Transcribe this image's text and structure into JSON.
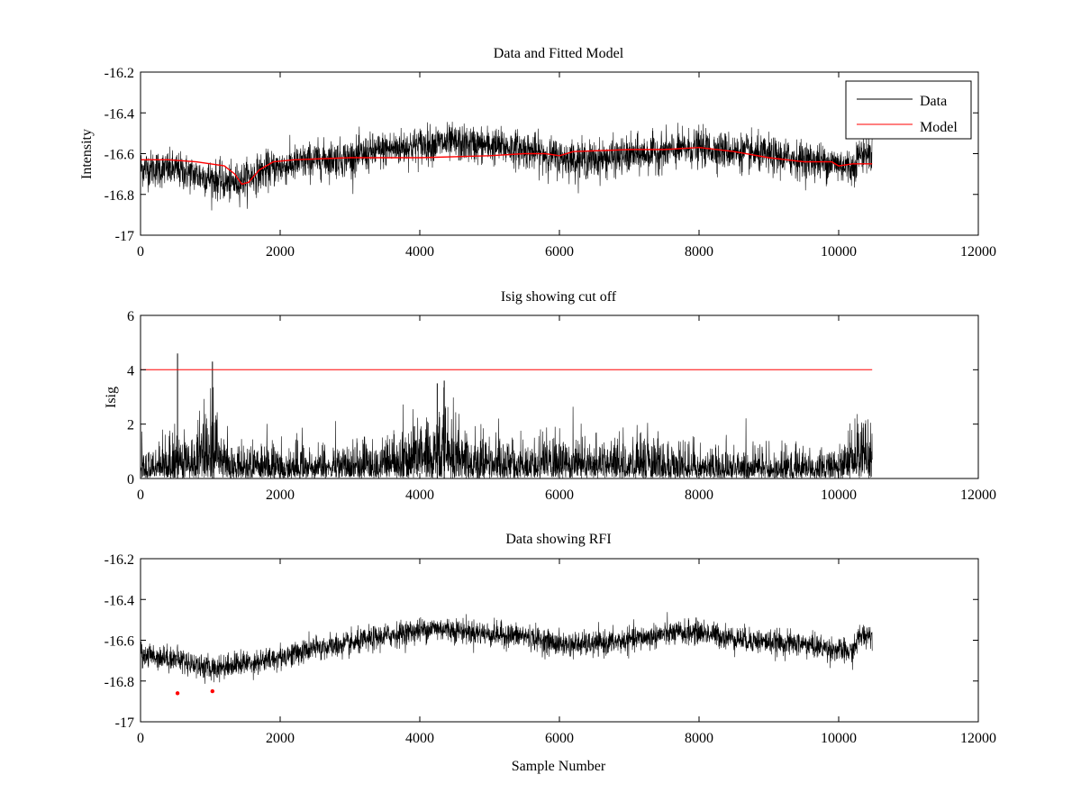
{
  "colors": {
    "data": "#000000",
    "model": "#ff0000",
    "rfi": "#ff0000",
    "background": "#ffffff",
    "axes": "#000000"
  },
  "chart_data": [
    {
      "type": "line",
      "title": "Data and Fitted Model",
      "xlabel": "",
      "ylabel": "Intensity",
      "xlim": [
        0,
        12000
      ],
      "ylim": [
        -17,
        -16.2
      ],
      "xticks": [
        "0",
        "2000",
        "4000",
        "6000",
        "8000",
        "10000",
        "12000"
      ],
      "yticks": [
        "-16.2",
        "-16.4",
        "-16.6",
        "-16.8",
        "-17"
      ],
      "legend": {
        "position": "top-right",
        "entries": [
          "Data",
          "Model"
        ]
      },
      "series": [
        {
          "name": "Data",
          "kind": "noisy",
          "x_range": [
            0,
            10480
          ],
          "noise_sd": 0.045,
          "baseline": [
            [
              0,
              -16.67
            ],
            [
              500,
              -16.68
            ],
            [
              1000,
              -16.72
            ],
            [
              1300,
              -16.75
            ],
            [
              1800,
              -16.68
            ],
            [
              2500,
              -16.63
            ],
            [
              3000,
              -16.62
            ],
            [
              3500,
              -16.58
            ],
            [
              4200,
              -16.55
            ],
            [
              4500,
              -16.55
            ],
            [
              5000,
              -16.56
            ],
            [
              5500,
              -16.58
            ],
            [
              6000,
              -16.62
            ],
            [
              6500,
              -16.63
            ],
            [
              7000,
              -16.61
            ],
            [
              7500,
              -16.59
            ],
            [
              8000,
              -16.57
            ],
            [
              8500,
              -16.59
            ],
            [
              9000,
              -16.61
            ],
            [
              9500,
              -16.63
            ],
            [
              10000,
              -16.65
            ],
            [
              10200,
              -16.67
            ],
            [
              10300,
              -16.6
            ],
            [
              10480,
              -16.6
            ]
          ]
        },
        {
          "name": "Model",
          "kind": "line",
          "points": [
            [
              0,
              -16.63
            ],
            [
              400,
              -16.63
            ],
            [
              800,
              -16.64
            ],
            [
              1000,
              -16.65
            ],
            [
              1200,
              -16.66
            ],
            [
              1350,
              -16.7
            ],
            [
              1450,
              -16.75
            ],
            [
              1550,
              -16.74
            ],
            [
              1700,
              -16.68
            ],
            [
              1900,
              -16.64
            ],
            [
              2200,
              -16.63
            ],
            [
              3000,
              -16.62
            ],
            [
              4000,
              -16.62
            ],
            [
              5000,
              -16.61
            ],
            [
              5500,
              -16.6
            ],
            [
              5800,
              -16.6
            ],
            [
              6000,
              -16.61
            ],
            [
              6200,
              -16.59
            ],
            [
              7000,
              -16.58
            ],
            [
              7500,
              -16.58
            ],
            [
              8000,
              -16.57
            ],
            [
              8500,
              -16.59
            ],
            [
              9000,
              -16.62
            ],
            [
              9500,
              -16.64
            ],
            [
              9900,
              -16.64
            ],
            [
              10000,
              -16.66
            ],
            [
              10200,
              -16.65
            ],
            [
              10480,
              -16.65
            ]
          ]
        }
      ]
    },
    {
      "type": "line",
      "title": "Isig showing cut off",
      "xlabel": "",
      "ylabel": "Isig",
      "xlim": [
        0,
        12000
      ],
      "ylim": [
        0,
        6
      ],
      "xticks": [
        "0",
        "2000",
        "4000",
        "6000",
        "8000",
        "10000",
        "12000"
      ],
      "yticks": [
        "0",
        "2",
        "4",
        "6"
      ],
      "series": [
        {
          "name": "Isig",
          "kind": "abs-noise",
          "x_range": [
            0,
            10480
          ],
          "envelope": [
            [
              0,
              0.5
            ],
            [
              600,
              0.8
            ],
            [
              1000,
              1.2
            ],
            [
              1300,
              0.6
            ],
            [
              2000,
              0.55
            ],
            [
              3000,
              0.6
            ],
            [
              3500,
              0.7
            ],
            [
              4200,
              1.2
            ],
            [
              4800,
              0.8
            ],
            [
              5500,
              0.6
            ],
            [
              6200,
              0.8
            ],
            [
              6800,
              0.7
            ],
            [
              8000,
              0.55
            ],
            [
              9000,
              0.5
            ],
            [
              10000,
              0.5
            ],
            [
              10200,
              0.9
            ],
            [
              10480,
              1.0
            ]
          ],
          "spikes": [
            [
              530,
              4.6
            ],
            [
              1030,
              4.3
            ],
            [
              4350,
              3.6
            ],
            [
              4250,
              3.5
            ]
          ]
        },
        {
          "name": "Cut off",
          "kind": "line",
          "points": [
            [
              0,
              4
            ],
            [
              10480,
              4
            ]
          ]
        }
      ]
    },
    {
      "type": "line",
      "title": "Data showing RFI",
      "xlabel": "Sample Number",
      "ylabel": "",
      "xlim": [
        0,
        12000
      ],
      "ylim": [
        -17,
        -16.2
      ],
      "xticks": [
        "0",
        "2000",
        "4000",
        "6000",
        "8000",
        "10000",
        "12000"
      ],
      "yticks": [
        "-16.2",
        "-16.4",
        "-16.6",
        "-16.8",
        "-17"
      ],
      "series": [
        {
          "name": "Data",
          "kind": "noisy",
          "x_range": [
            0,
            10480
          ],
          "noise_sd": 0.03,
          "baseline": [
            [
              0,
              -16.67
            ],
            [
              500,
              -16.69
            ],
            [
              1000,
              -16.74
            ],
            [
              1300,
              -16.72
            ],
            [
              1800,
              -16.7
            ],
            [
              2500,
              -16.64
            ],
            [
              3000,
              -16.62
            ],
            [
              3500,
              -16.58
            ],
            [
              4200,
              -16.54
            ],
            [
              4500,
              -16.55
            ],
            [
              5000,
              -16.57
            ],
            [
              5500,
              -16.58
            ],
            [
              6000,
              -16.62
            ],
            [
              6500,
              -16.62
            ],
            [
              7000,
              -16.6
            ],
            [
              7500,
              -16.57
            ],
            [
              8000,
              -16.56
            ],
            [
              8500,
              -16.59
            ],
            [
              9000,
              -16.61
            ],
            [
              9500,
              -16.62
            ],
            [
              10000,
              -16.65
            ],
            [
              10200,
              -16.66
            ],
            [
              10300,
              -16.58
            ],
            [
              10480,
              -16.57
            ]
          ]
        },
        {
          "name": "RFI",
          "kind": "markers",
          "points": [
            [
              530,
              -16.86
            ],
            [
              1030,
              -16.85
            ]
          ]
        }
      ]
    }
  ]
}
